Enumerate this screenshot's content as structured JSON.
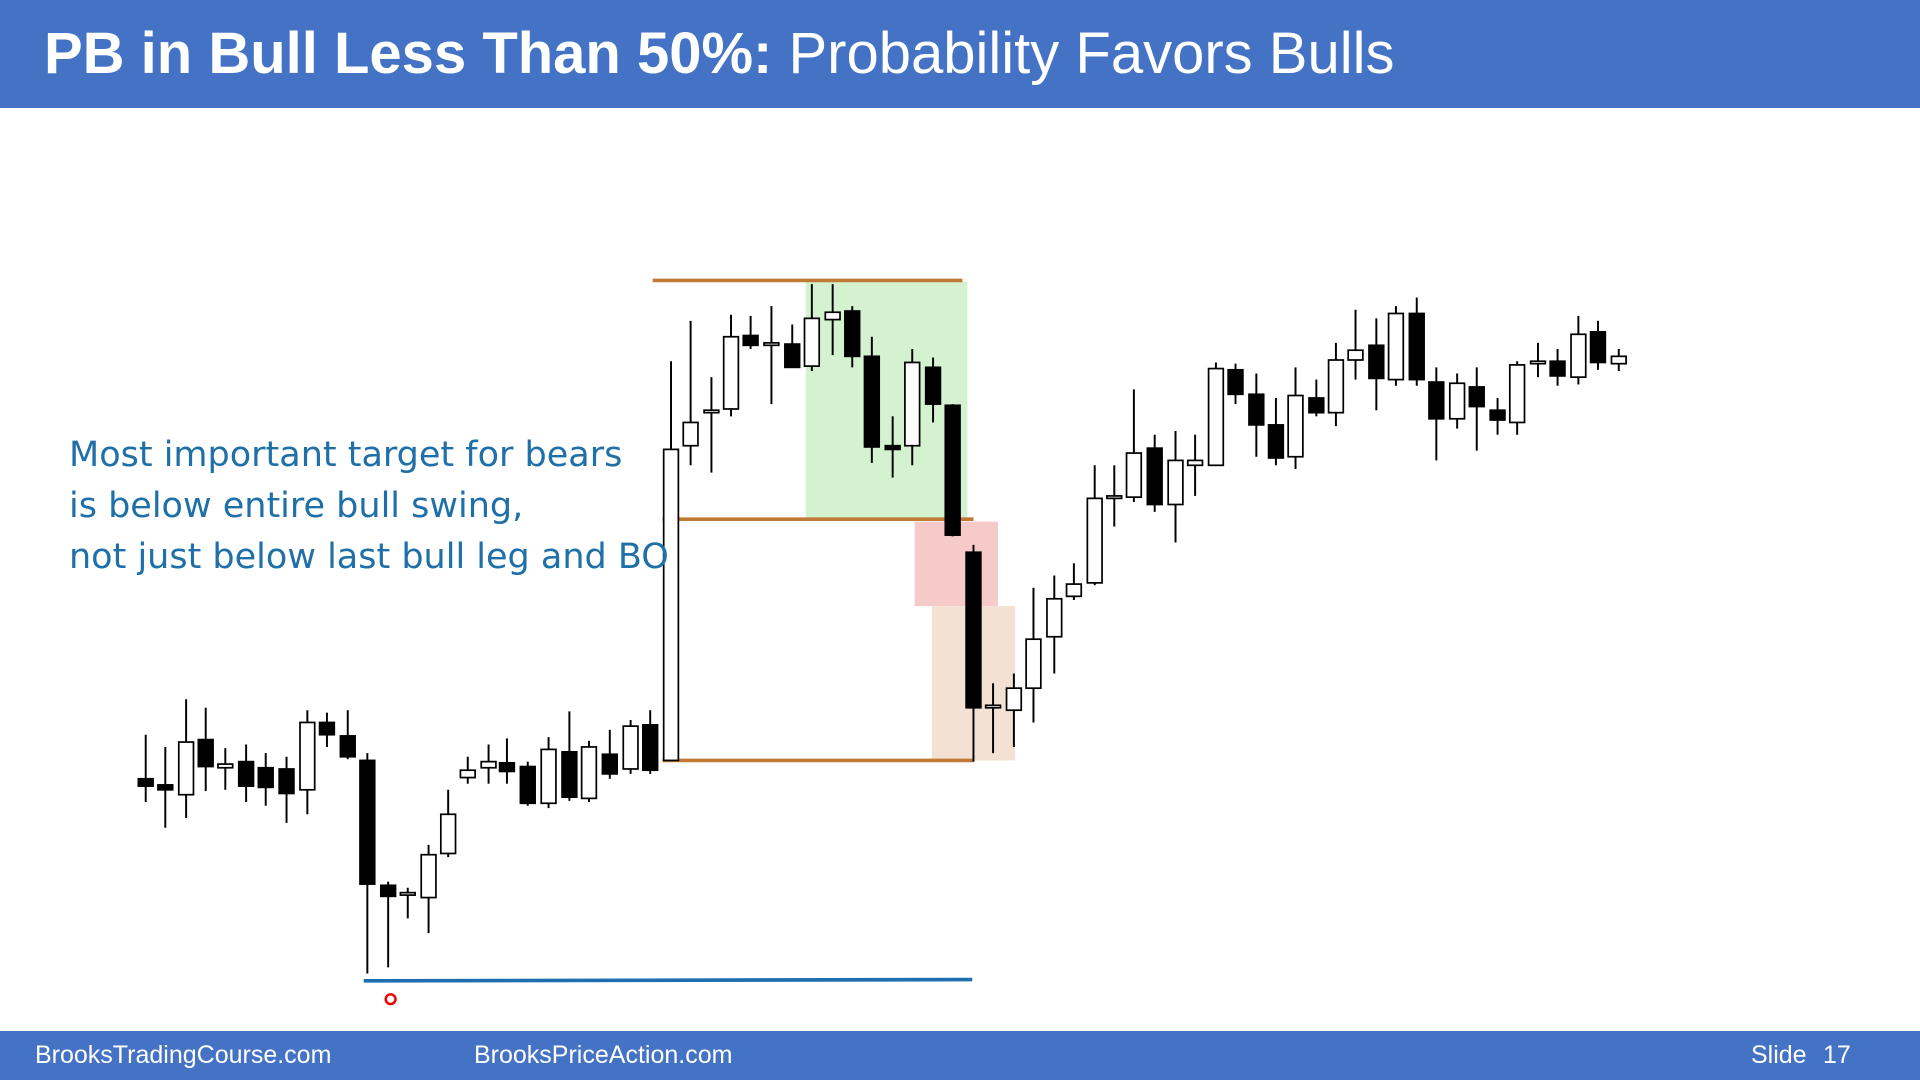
{
  "header": {
    "title_bold": "PB in Bull Less Than 50%:",
    "title_rest": "Probability Favors Bulls"
  },
  "annotation": {
    "lines": [
      "Most important target for bears",
      "is below entire bull swing,",
      "not just below last bull leg and BO"
    ]
  },
  "footer": {
    "left": "BrooksTradingCourse.com",
    "center": "BrooksPriceAction.com",
    "slide_label": "Slide",
    "slide_number": "17"
  }
}
